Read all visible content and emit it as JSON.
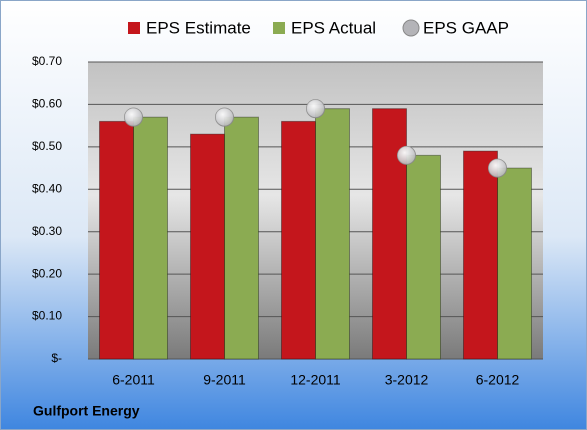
{
  "chart_data": {
    "type": "bar",
    "categories": [
      "6-2011",
      "9-2011",
      "12-2011",
      "3-2012",
      "6-2012"
    ],
    "series": [
      {
        "name": "EPS Estimate",
        "color": "#c4161c",
        "values": [
          0.56,
          0.53,
          0.56,
          0.59,
          0.49
        ]
      },
      {
        "name": "EPS Actual",
        "color": "#8bab52",
        "values": [
          0.57,
          0.57,
          0.59,
          0.48,
          0.45
        ]
      },
      {
        "name": "EPS GAAP",
        "color": "#b4b4b8",
        "type": "scatter",
        "values": [
          0.57,
          0.57,
          0.59,
          0.48,
          0.45
        ]
      }
    ],
    "ylim": [
      0,
      0.7
    ],
    "yticks": [
      {
        "value": 0,
        "label": "$-"
      },
      {
        "value": 0.1,
        "label": "$0.10"
      },
      {
        "value": 0.2,
        "label": "$0.20"
      },
      {
        "value": 0.3,
        "label": "$0.30"
      },
      {
        "value": 0.4,
        "label": "$0.40"
      },
      {
        "value": 0.5,
        "label": "$0.50"
      },
      {
        "value": 0.6,
        "label": "$0.60"
      },
      {
        "value": 0.7,
        "label": "$0.70"
      }
    ],
    "grid": true,
    "legend": "top",
    "footer": "Gulfport Energy"
  }
}
